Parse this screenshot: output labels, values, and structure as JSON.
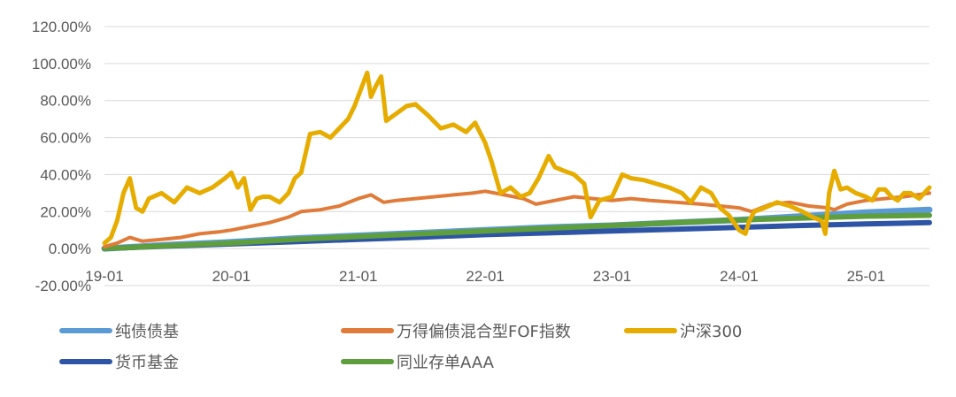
{
  "chart_data": {
    "type": "line",
    "title": "",
    "xlabel": "",
    "ylabel": "",
    "x_ticks": [
      "19-01",
      "20-01",
      "21-01",
      "22-01",
      "23-01",
      "24-01",
      "25-01"
    ],
    "y_ticks": [
      "120.00%",
      "100.00%",
      "80.00%",
      "60.00%",
      "40.00%",
      "20.00%",
      "0.00%",
      "-20.00%"
    ],
    "ylim": [
      -20,
      120
    ],
    "xlim": [
      2019.0,
      2025.5
    ],
    "grid": true,
    "legend_position": "bottom",
    "series": [
      {
        "name": "纯债债基",
        "color": "#5b9bd5",
        "width": 7,
        "x": [
          2019.0,
          2019.5,
          2020.0,
          2020.5,
          2021.0,
          2021.5,
          2022.0,
          2022.5,
          2023.0,
          2023.5,
          2024.0,
          2024.5,
          2025.0,
          2025.5
        ],
        "y": [
          0,
          2,
          3.5,
          5.5,
          7,
          8.5,
          10,
          11.5,
          12.5,
          14,
          15.5,
          17.5,
          19.5,
          21
        ]
      },
      {
        "name": "万得偏债混合型FOF指数",
        "color": "#e07b39",
        "width": 4,
        "x": [
          2019.0,
          2019.1,
          2019.2,
          2019.3,
          2019.45,
          2019.6,
          2019.75,
          2019.9,
          2020.0,
          2020.15,
          2020.3,
          2020.45,
          2020.55,
          2020.7,
          2020.85,
          2021.0,
          2021.1,
          2021.2,
          2021.3,
          2021.45,
          2021.6,
          2021.75,
          2021.9,
          2022.0,
          2022.15,
          2022.3,
          2022.4,
          2022.55,
          2022.7,
          2022.85,
          2023.0,
          2023.15,
          2023.3,
          2023.5,
          2023.7,
          2023.85,
          2024.0,
          2024.1,
          2024.25,
          2024.4,
          2024.55,
          2024.7,
          2024.75,
          2024.85,
          2025.0,
          2025.15,
          2025.3,
          2025.5
        ],
        "y": [
          1,
          3,
          6,
          4,
          5,
          6,
          8,
          9,
          10,
          12,
          14,
          17,
          20,
          21,
          23,
          27,
          29,
          25,
          26,
          27,
          28,
          29,
          30,
          31,
          29,
          27,
          24,
          26,
          28,
          27,
          26,
          27,
          26,
          25,
          24,
          23,
          22,
          20,
          24,
          25,
          23,
          22,
          21,
          24,
          26,
          27,
          28,
          30
        ]
      },
      {
        "name": "沪深300",
        "color": "#e6ac00",
        "width": 5,
        "x": [
          2019.0,
          2019.05,
          2019.1,
          2019.15,
          2019.2,
          2019.25,
          2019.3,
          2019.35,
          2019.45,
          2019.55,
          2019.65,
          2019.75,
          2019.85,
          2019.95,
          2020.0,
          2020.05,
          2020.1,
          2020.15,
          2020.2,
          2020.25,
          2020.3,
          2020.38,
          2020.45,
          2020.5,
          2020.55,
          2020.62,
          2020.7,
          2020.78,
          2020.85,
          2020.92,
          2020.97,
          2021.02,
          2021.07,
          2021.1,
          2021.14,
          2021.18,
          2021.22,
          2021.3,
          2021.38,
          2021.45,
          2021.55,
          2021.65,
          2021.75,
          2021.85,
          2021.92,
          2022.0,
          2022.05,
          2022.12,
          2022.2,
          2022.28,
          2022.35,
          2022.42,
          2022.5,
          2022.55,
          2022.62,
          2022.7,
          2022.78,
          2022.83,
          2022.9,
          2023.0,
          2023.08,
          2023.15,
          2023.25,
          2023.35,
          2023.45,
          2023.55,
          2023.62,
          2023.7,
          2023.78,
          2023.85,
          2023.92,
          2024.0,
          2024.05,
          2024.08,
          2024.12,
          2024.2,
          2024.3,
          2024.4,
          2024.5,
          2024.58,
          2024.65,
          2024.68,
          2024.71,
          2024.75,
          2024.8,
          2024.85,
          2024.92,
          2025.0,
          2025.05,
          2025.1,
          2025.15,
          2025.2,
          2025.25,
          2025.3,
          2025.35,
          2025.42,
          2025.5
        ],
        "y": [
          3,
          6,
          15,
          30,
          38,
          22,
          20,
          27,
          30,
          25,
          33,
          30,
          33,
          38,
          41,
          33,
          38,
          21,
          27,
          28,
          28,
          25,
          30,
          38,
          41,
          62,
          63,
          60,
          65,
          70,
          77,
          86,
          95,
          82,
          88,
          93,
          69,
          73,
          77,
          78,
          72,
          65,
          67,
          63,
          68,
          57,
          47,
          30,
          33,
          28,
          30,
          38,
          50,
          44,
          42,
          40,
          35,
          17,
          26,
          28,
          40,
          38,
          37,
          35,
          33,
          30,
          25,
          33,
          30,
          22,
          18,
          10,
          8,
          15,
          20,
          22,
          25,
          23,
          20,
          17,
          15,
          8,
          30,
          42,
          32,
          33,
          30,
          28,
          26,
          32,
          32,
          28,
          26,
          30,
          30,
          27,
          33
        ]
      },
      {
        "name": "货币基金",
        "color": "#2e55a5",
        "width": 6,
        "x": [
          2019.0,
          2019.5,
          2020.0,
          2020.5,
          2021.0,
          2021.5,
          2022.0,
          2022.5,
          2023.0,
          2023.5,
          2024.0,
          2024.5,
          2025.0,
          2025.5
        ],
        "y": [
          0,
          1.3,
          2.5,
          3.7,
          5,
          6.2,
          7.5,
          8.5,
          9.5,
          10.5,
          11.5,
          12.5,
          13.3,
          14
        ]
      },
      {
        "name": "同业存单AAA",
        "color": "#5e9e3c",
        "width": 6,
        "x": [
          2019.0,
          2019.5,
          2020.0,
          2020.5,
          2021.0,
          2021.5,
          2022.0,
          2022.5,
          2023.0,
          2023.5,
          2024.0,
          2024.5,
          2025.0,
          2025.5
        ],
        "y": [
          0,
          1.5,
          3,
          5,
          6.5,
          8,
          9.5,
          11,
          12.5,
          14,
          15.5,
          16.5,
          17.5,
          18
        ]
      }
    ]
  }
}
